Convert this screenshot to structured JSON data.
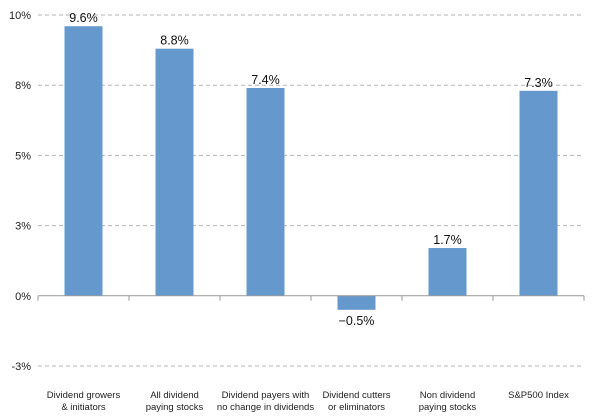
{
  "chart_data": {
    "type": "bar",
    "title": "",
    "xlabel": "",
    "ylabel": "",
    "categories": [
      [
        "Dividend growers",
        "& initiators"
      ],
      [
        "All dividend",
        "paying stocks"
      ],
      [
        "Dividend payers with",
        "no change in dividends"
      ],
      [
        "Dividend cutters",
        "or eliminators"
      ],
      [
        "Non dividend",
        "paying stocks"
      ],
      [
        "S&P500 Index"
      ]
    ],
    "values": [
      9.6,
      8.8,
      7.4,
      -0.5,
      1.7,
      7.3
    ],
    "data_labels": [
      "9.6%",
      "8.8%",
      "7.4%",
      "−0.5%",
      "1.7%",
      "7.3%"
    ],
    "ylim": [
      -3,
      10
    ],
    "y_ticks": [
      10,
      7.5,
      5,
      2.5,
      0,
      -2.5
    ],
    "y_tick_labels": [
      "10%",
      "8%",
      "5%",
      "3%",
      "0%",
      "-3%"
    ],
    "grid": true,
    "bar_color": "#6598cd",
    "axis_color": "#999999"
  }
}
